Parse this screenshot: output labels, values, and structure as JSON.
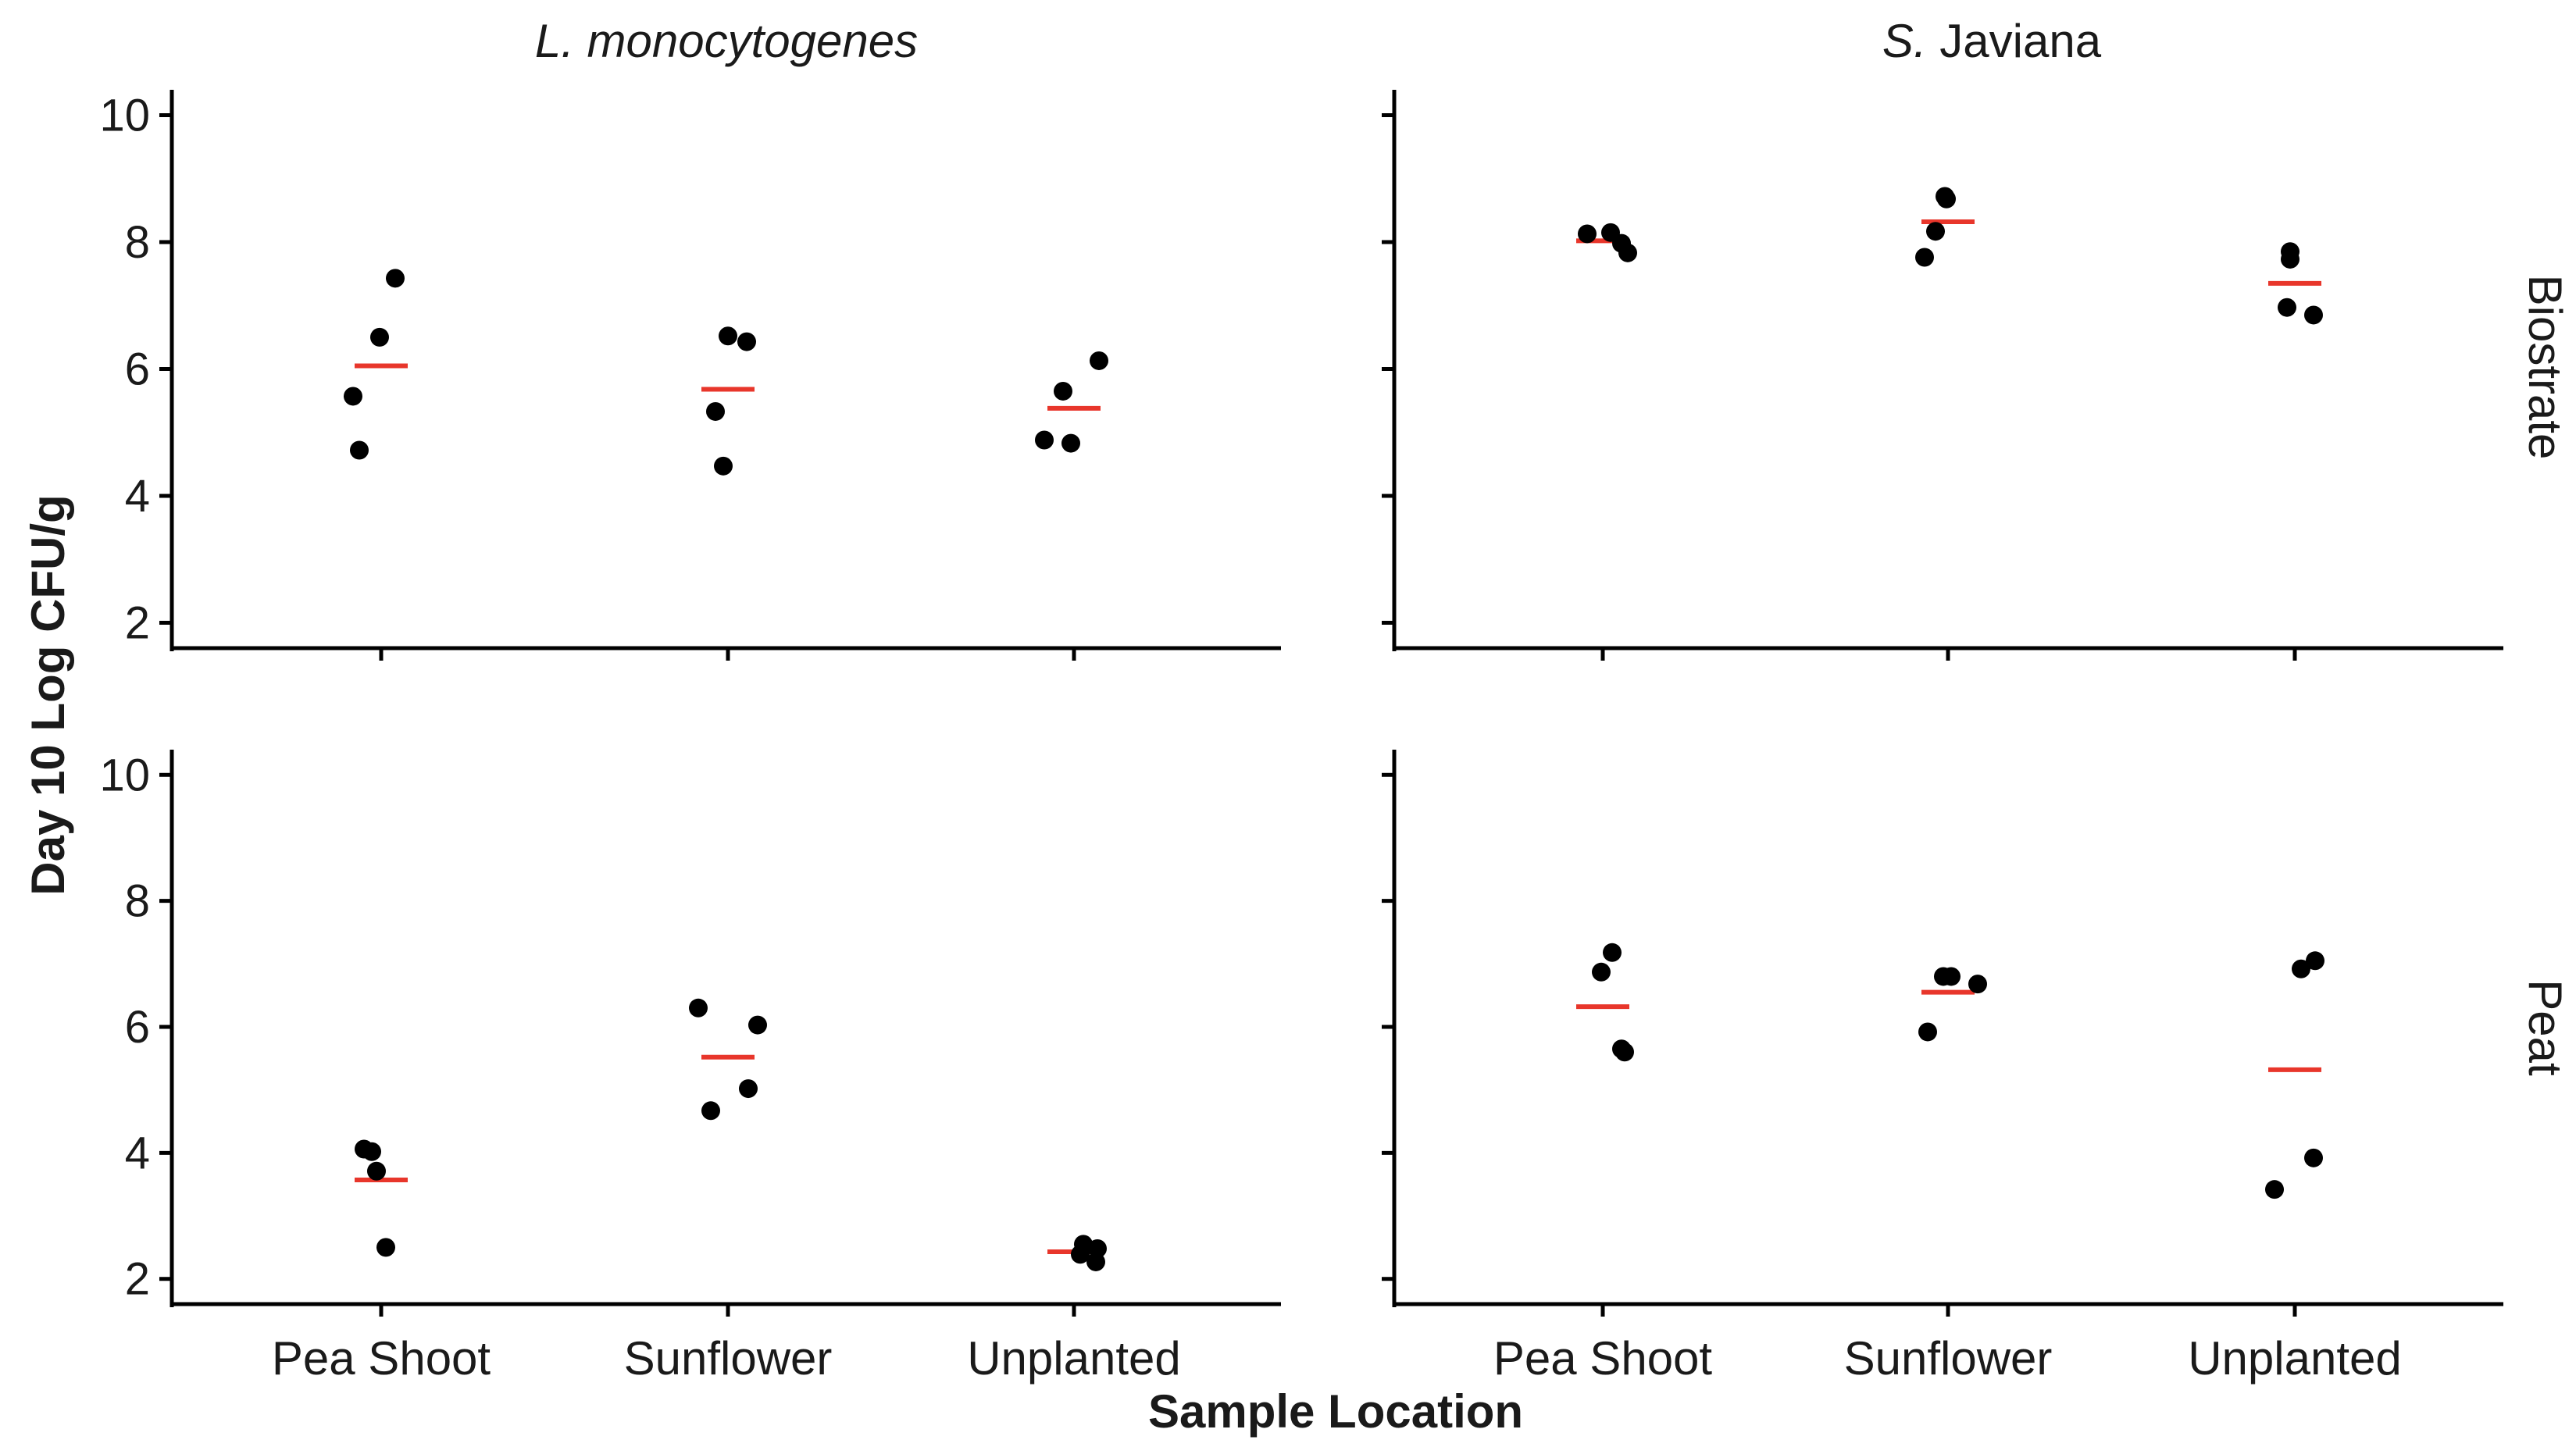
{
  "chart_data": {
    "type": "scatter",
    "ylabel": "Day 10 Log CFU/g",
    "xlabel": "Sample Location",
    "categories": [
      "Pea Shoot",
      "Sunflower",
      "Unplanted"
    ],
    "ylim": [
      1.6,
      10.4
    ],
    "yticks": [
      2,
      4,
      6,
      8,
      10
    ],
    "column_facets": [
      {
        "italic": "L. monocytogenes",
        "plain": ""
      },
      {
        "italic": "S.",
        "plain": " Javiana"
      }
    ],
    "row_facets": [
      "Biostrate",
      "Peat"
    ],
    "point_color": "#000000",
    "mean_color": "#e8362b",
    "panels": [
      {
        "row": "Biostrate",
        "column": "L. monocytogenes",
        "groups": [
          {
            "category": "Pea Shoot",
            "mean": 6.05,
            "points": [
              {
                "jitter": -0.18,
                "y": 5.57
              },
              {
                "jitter": -0.14,
                "y": 4.72
              },
              {
                "jitter": -0.01,
                "y": 6.5
              },
              {
                "jitter": 0.09,
                "y": 7.43
              }
            ]
          },
          {
            "category": "Sunflower",
            "mean": 5.68,
            "points": [
              {
                "jitter": -0.08,
                "y": 5.33
              },
              {
                "jitter": -0.03,
                "y": 4.47
              },
              {
                "jitter": 0.0,
                "y": 6.52
              },
              {
                "jitter": 0.12,
                "y": 6.43
              }
            ]
          },
          {
            "category": "Unplanted",
            "mean": 5.38,
            "points": [
              {
                "jitter": -0.19,
                "y": 4.88
              },
              {
                "jitter": -0.07,
                "y": 5.65
              },
              {
                "jitter": -0.02,
                "y": 4.83
              },
              {
                "jitter": 0.16,
                "y": 6.13
              }
            ]
          }
        ]
      },
      {
        "row": "Biostrate",
        "column": "S. Javiana",
        "groups": [
          {
            "category": "Pea Shoot",
            "mean": 8.02,
            "points": [
              {
                "jitter": -0.1,
                "y": 8.13
              },
              {
                "jitter": 0.05,
                "y": 8.15
              },
              {
                "jitter": 0.12,
                "y": 7.98
              },
              {
                "jitter": 0.16,
                "y": 7.83
              }
            ]
          },
          {
            "category": "Sunflower",
            "mean": 8.32,
            "points": [
              {
                "jitter": -0.15,
                "y": 7.76
              },
              {
                "jitter": -0.08,
                "y": 8.17
              },
              {
                "jitter": -0.02,
                "y": 8.72
              },
              {
                "jitter": -0.01,
                "y": 8.68
              }
            ]
          },
          {
            "category": "Unplanted",
            "mean": 7.35,
            "points": [
              {
                "jitter": -0.03,
                "y": 7.85
              },
              {
                "jitter": -0.05,
                "y": 6.97
              },
              {
                "jitter": -0.03,
                "y": 7.73
              },
              {
                "jitter": 0.12,
                "y": 6.85
              }
            ]
          }
        ]
      },
      {
        "row": "Peat",
        "column": "L. monocytogenes",
        "groups": [
          {
            "category": "Pea Shoot",
            "mean": 3.57,
            "points": [
              {
                "jitter": -0.11,
                "y": 4.06
              },
              {
                "jitter": -0.06,
                "y": 4.02
              },
              {
                "jitter": -0.03,
                "y": 3.71
              },
              {
                "jitter": 0.03,
                "y": 2.5
              }
            ]
          },
          {
            "category": "Sunflower",
            "mean": 5.52,
            "points": [
              {
                "jitter": -0.19,
                "y": 6.3
              },
              {
                "jitter": -0.11,
                "y": 4.67
              },
              {
                "jitter": 0.13,
                "y": 5.02
              },
              {
                "jitter": 0.19,
                "y": 6.03
              }
            ]
          },
          {
            "category": "Unplanted",
            "mean": 2.43,
            "points": [
              {
                "jitter": 0.04,
                "y": 2.39
              },
              {
                "jitter": 0.06,
                "y": 2.55
              },
              {
                "jitter": 0.14,
                "y": 2.27
              },
              {
                "jitter": 0.15,
                "y": 2.48
              }
            ]
          }
        ]
      },
      {
        "row": "Peat",
        "column": "S. Javiana",
        "groups": [
          {
            "category": "Pea Shoot",
            "mean": 6.32,
            "points": [
              {
                "jitter": -0.01,
                "y": 6.87
              },
              {
                "jitter": 0.06,
                "y": 7.18
              },
              {
                "jitter": 0.12,
                "y": 5.65
              },
              {
                "jitter": 0.14,
                "y": 5.6
              }
            ]
          },
          {
            "category": "Sunflower",
            "mean": 6.55,
            "points": [
              {
                "jitter": -0.13,
                "y": 5.92
              },
              {
                "jitter": -0.03,
                "y": 6.8
              },
              {
                "jitter": 0.02,
                "y": 6.8
              },
              {
                "jitter": 0.19,
                "y": 6.68
              }
            ]
          },
          {
            "category": "Unplanted",
            "mean": 5.32,
            "points": [
              {
                "jitter": -0.13,
                "y": 3.42
              },
              {
                "jitter": 0.04,
                "y": 6.92
              },
              {
                "jitter": 0.12,
                "y": 3.92
              },
              {
                "jitter": 0.13,
                "y": 7.05
              }
            ]
          }
        ]
      }
    ]
  }
}
